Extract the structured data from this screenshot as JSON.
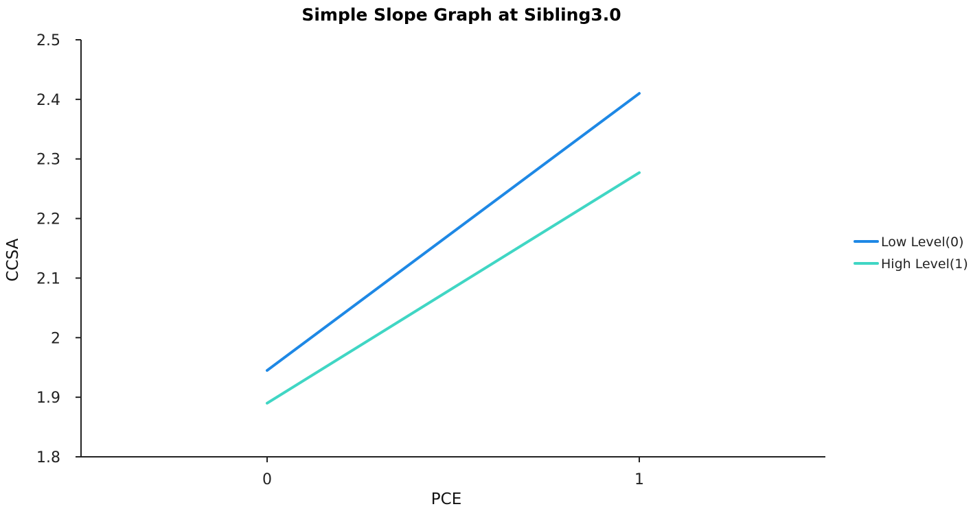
{
  "chart_data": {
    "type": "line",
    "title": "Simple Slope Graph at Sibling3.0",
    "xlabel": "PCE",
    "ylabel": "CCSA",
    "x": [
      0,
      1
    ],
    "x_tick_labels": [
      "0",
      "1"
    ],
    "xlim": [
      -0.5,
      1.5
    ],
    "ylim": [
      1.8,
      2.5
    ],
    "y_ticks": [
      1.8,
      1.9,
      2.0,
      2.1,
      2.2,
      2.3,
      2.4,
      2.5
    ],
    "y_tick_labels": [
      "1.8",
      "1.9",
      "2",
      "2.1",
      "2.2",
      "2.3",
      "2.4",
      "2.5"
    ],
    "grid": false,
    "legend_position": "right",
    "series": [
      {
        "name": "Low Level(0)",
        "values": [
          1.945,
          2.41
        ],
        "color": "#1e88e5"
      },
      {
        "name": "High Level(1)",
        "values": [
          1.89,
          2.277
        ],
        "color": "#40d6c4"
      }
    ]
  }
}
